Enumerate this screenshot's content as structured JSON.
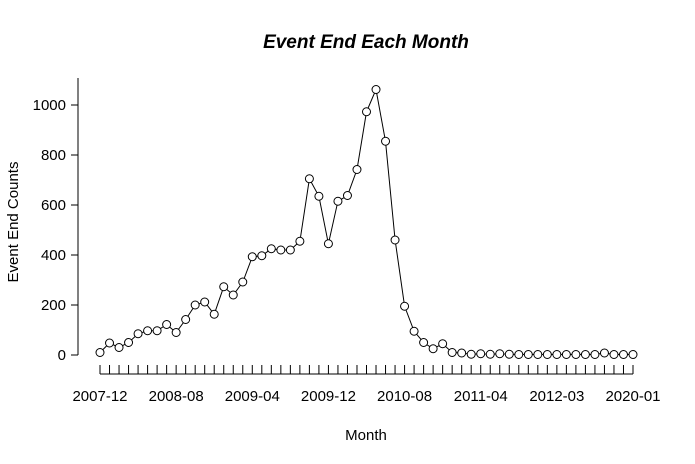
{
  "chart_data": {
    "type": "line",
    "title": "Event End Each Month",
    "xlabel": "Month",
    "ylabel": "Event End Counts",
    "ylim": [
      0,
      1000
    ],
    "yticks": [
      "0",
      "200",
      "400",
      "600",
      "800",
      "1000"
    ],
    "xtick_labels": [
      {
        "index": 0,
        "label": "2007-12"
      },
      {
        "index": 8,
        "label": "2008-08"
      },
      {
        "index": 16,
        "label": "2009-04"
      },
      {
        "index": 24,
        "label": "2009-12"
      },
      {
        "index": 32,
        "label": "2010-08"
      },
      {
        "index": 40,
        "label": "2011-04"
      },
      {
        "index": 48,
        "label": "2012-03"
      },
      {
        "index": 56,
        "label": "2020-01"
      }
    ],
    "series": [
      {
        "marker": "open-circle",
        "color": "#000000",
        "values": [
          10,
          48,
          30,
          50,
          85,
          97,
          97,
          122,
          90,
          142,
          200,
          212,
          163,
          273,
          240,
          292,
          393,
          397,
          425,
          420,
          420,
          455,
          705,
          635,
          445,
          615,
          638,
          742,
          973,
          1062,
          855,
          460,
          195,
          95,
          50,
          25,
          45,
          10,
          8,
          3,
          5,
          3,
          5,
          3,
          2,
          2,
          2,
          2,
          2,
          2,
          2,
          2,
          2,
          8,
          2,
          2,
          2
        ]
      }
    ],
    "grid": false,
    "legend": "none"
  }
}
